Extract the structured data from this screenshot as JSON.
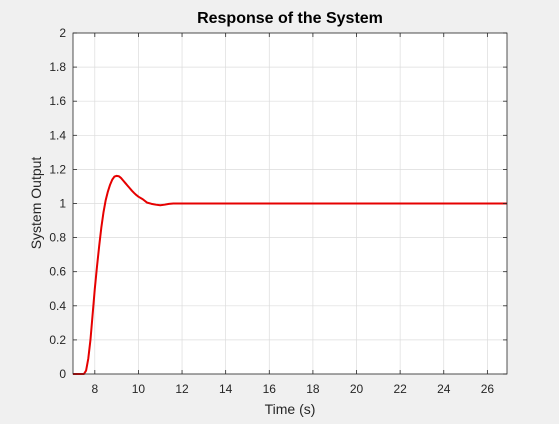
{
  "chart_data": {
    "type": "line",
    "title": "Response of the System",
    "xlabel": "Time (s)",
    "ylabel": "System Output",
    "xlim": [
      7,
      26.9
    ],
    "ylim": [
      0,
      2
    ],
    "x_ticks": [
      8,
      10,
      12,
      14,
      16,
      18,
      20,
      22,
      24,
      26
    ],
    "y_ticks": [
      0,
      0.2,
      0.4,
      0.6,
      0.8,
      1,
      1.2,
      1.4,
      1.6,
      1.8,
      2
    ],
    "x_tick_labels": [
      "8",
      "10",
      "12",
      "14",
      "16",
      "18",
      "20",
      "22",
      "24",
      "26"
    ],
    "y_tick_labels": [
      "0",
      "0.2",
      "0.4",
      "0.6",
      "0.8",
      "1",
      "1.2",
      "1.4",
      "1.6",
      "1.8",
      "2"
    ],
    "grid": true,
    "series": [
      {
        "color": "#e60000",
        "x": [
          7.0,
          7.5,
          7.6,
          7.7,
          7.8,
          7.9,
          8.0,
          8.1,
          8.2,
          8.3,
          8.4,
          8.5,
          8.6,
          8.7,
          8.8,
          8.9,
          9.0,
          9.1,
          9.2,
          9.3,
          9.4,
          9.5,
          9.6,
          9.7,
          9.8,
          9.9,
          10.0,
          10.2,
          10.4,
          10.6,
          10.8,
          11.0,
          11.2,
          11.4,
          11.6,
          12.0,
          14.0,
          18.0,
          22.0,
          26.9
        ],
        "y": [
          0,
          0,
          0.02,
          0.09,
          0.2,
          0.35,
          0.5,
          0.63,
          0.75,
          0.86,
          0.95,
          1.02,
          1.07,
          1.11,
          1.14,
          1.158,
          1.162,
          1.16,
          1.15,
          1.135,
          1.12,
          1.105,
          1.09,
          1.075,
          1.062,
          1.05,
          1.04,
          1.025,
          1.005,
          0.998,
          0.993,
          0.99,
          0.993,
          0.998,
          1.0,
          1.0,
          1.0,
          1.0,
          1.0,
          1.0
        ]
      }
    ]
  }
}
